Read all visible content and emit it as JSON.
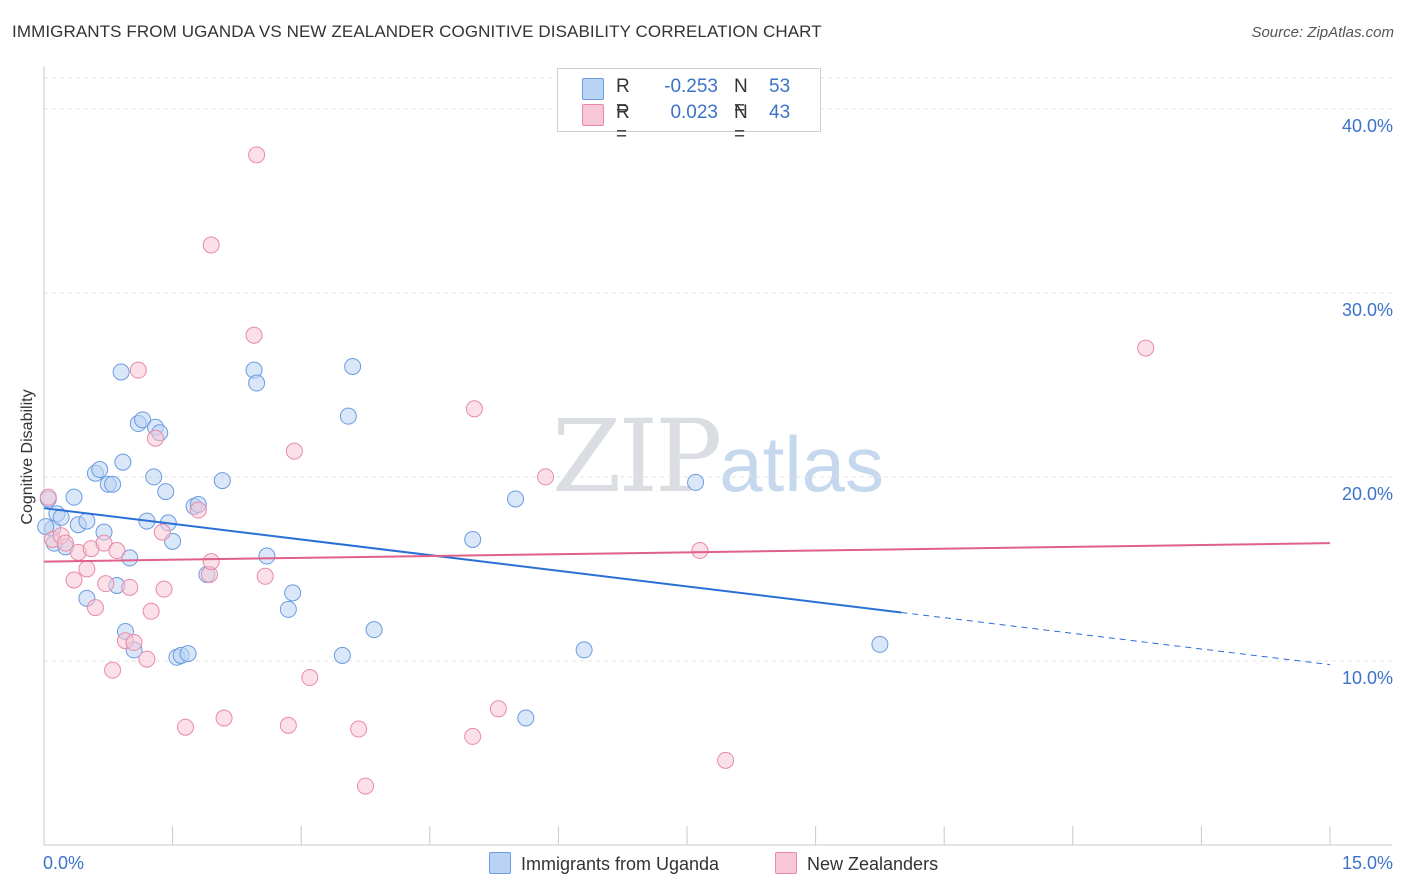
{
  "title": "IMMIGRANTS FROM UGANDA VS NEW ZEALANDER COGNITIVE DISABILITY CORRELATION CHART",
  "source": "Source: ZipAtlas.com",
  "watermark": {
    "zip": "ZIP",
    "atlas": "atlas"
  },
  "legend": {
    "r_label": "R =",
    "n_label": "N =",
    "rows": [
      {
        "r": "-0.253",
        "n": "53",
        "fill": "#b9d3f4",
        "stroke": "#6b9be0"
      },
      {
        "r": "0.023",
        "n": "43",
        "fill": "#f8c7d6",
        "stroke": "#e98aa8"
      }
    ]
  },
  "chart_data": {
    "type": "scatter",
    "xlabel": "",
    "ylabel": "Cognitive Disability",
    "xlim": [
      0,
      15
    ],
    "ylim": [
      0,
      42
    ],
    "x_ticks_labeled": [
      {
        "value": 0,
        "label": "0.0%"
      },
      {
        "value": 15,
        "label": "15.0%"
      }
    ],
    "x_minor_ticks": [
      1.5,
      3,
      4.5,
      6,
      7.5,
      9,
      10.5,
      12,
      13.5
    ],
    "y_ticks": [
      {
        "value": 10,
        "label": "10.0%"
      },
      {
        "value": 20,
        "label": "20.0%"
      },
      {
        "value": 30,
        "label": "30.0%"
      },
      {
        "value": 40,
        "label": "40.0%"
      }
    ],
    "grid": true,
    "legend_position": "top-center",
    "series": [
      {
        "name": "Immigrants from Uganda",
        "color": "#6b9be0",
        "fill": "#b9d3f4",
        "line_color": "#2a6fd6",
        "trend": {
          "x_start": 0,
          "y_start": 18.3,
          "x_solid_end": 10.0,
          "x_end": 15,
          "y_end": 9.8
        },
        "points": [
          [
            0.05,
            18.8
          ],
          [
            0.1,
            17.2
          ],
          [
            0.15,
            18.0
          ],
          [
            0.2,
            17.8
          ],
          [
            0.25,
            16.2
          ],
          [
            0.35,
            18.9
          ],
          [
            0.4,
            17.4
          ],
          [
            0.5,
            17.6
          ],
          [
            0.6,
            20.2
          ],
          [
            0.65,
            20.4
          ],
          [
            0.7,
            17.0
          ],
          [
            0.75,
            19.6
          ],
          [
            0.8,
            19.6
          ],
          [
            0.5,
            13.4
          ],
          [
            0.85,
            14.1
          ],
          [
            0.9,
            25.7
          ],
          [
            0.92,
            20.8
          ],
          [
            0.95,
            11.6
          ],
          [
            1.0,
            15.6
          ],
          [
            1.05,
            10.6
          ],
          [
            1.1,
            22.9
          ],
          [
            1.15,
            23.1
          ],
          [
            1.2,
            17.6
          ],
          [
            1.28,
            20.0
          ],
          [
            1.3,
            22.7
          ],
          [
            1.35,
            22.4
          ],
          [
            1.42,
            19.2
          ],
          [
            1.45,
            17.5
          ],
          [
            1.5,
            16.5
          ],
          [
            1.55,
            10.2
          ],
          [
            1.6,
            10.3
          ],
          [
            1.68,
            10.4
          ],
          [
            1.75,
            18.4
          ],
          [
            1.8,
            18.5
          ],
          [
            1.9,
            14.7
          ],
          [
            2.08,
            19.8
          ],
          [
            2.45,
            25.8
          ],
          [
            2.48,
            25.1
          ],
          [
            2.6,
            15.7
          ],
          [
            2.85,
            12.8
          ],
          [
            2.9,
            13.7
          ],
          [
            3.48,
            10.3
          ],
          [
            3.55,
            23.3
          ],
          [
            3.6,
            26.0
          ],
          [
            3.85,
            11.7
          ],
          [
            5.0,
            16.6
          ],
          [
            5.5,
            18.8
          ],
          [
            5.62,
            6.9
          ],
          [
            6.3,
            10.6
          ],
          [
            7.6,
            19.7
          ],
          [
            9.75,
            10.9
          ],
          [
            0.02,
            17.3
          ],
          [
            0.12,
            16.4
          ]
        ]
      },
      {
        "name": "New Zealanders",
        "color": "#e98aa8",
        "fill": "#f8c7d6",
        "line_color": "#e0608b",
        "trend": {
          "x_start": 0,
          "y_start": 15.4,
          "x_solid_end": 15,
          "x_end": 15,
          "y_end": 16.4
        },
        "points": [
          [
            0.05,
            18.9
          ],
          [
            0.1,
            16.6
          ],
          [
            0.2,
            16.8
          ],
          [
            0.25,
            16.4
          ],
          [
            0.35,
            14.4
          ],
          [
            0.4,
            15.9
          ],
          [
            0.5,
            15.0
          ],
          [
            0.55,
            16.1
          ],
          [
            0.6,
            12.9
          ],
          [
            0.7,
            16.4
          ],
          [
            0.72,
            14.2
          ],
          [
            0.8,
            9.5
          ],
          [
            0.85,
            16.0
          ],
          [
            0.95,
            11.1
          ],
          [
            1.0,
            14.0
          ],
          [
            1.05,
            11.0
          ],
          [
            1.1,
            25.8
          ],
          [
            1.2,
            10.1
          ],
          [
            1.25,
            12.7
          ],
          [
            1.3,
            22.1
          ],
          [
            1.38,
            17.0
          ],
          [
            1.4,
            13.9
          ],
          [
            1.65,
            6.4
          ],
          [
            1.8,
            18.2
          ],
          [
            1.93,
            14.7
          ],
          [
            1.95,
            15.4
          ],
          [
            1.95,
            32.6
          ],
          [
            2.1,
            6.9
          ],
          [
            2.45,
            27.7
          ],
          [
            2.48,
            37.5
          ],
          [
            2.58,
            14.6
          ],
          [
            2.85,
            6.5
          ],
          [
            2.92,
            21.4
          ],
          [
            3.1,
            9.1
          ],
          [
            3.67,
            6.3
          ],
          [
            3.75,
            3.2
          ],
          [
            5.0,
            5.9
          ],
          [
            5.02,
            23.7
          ],
          [
            5.3,
            7.4
          ],
          [
            5.85,
            20.0
          ],
          [
            7.65,
            16.0
          ],
          [
            7.95,
            4.6
          ],
          [
            12.85,
            27.0
          ]
        ]
      }
    ]
  }
}
